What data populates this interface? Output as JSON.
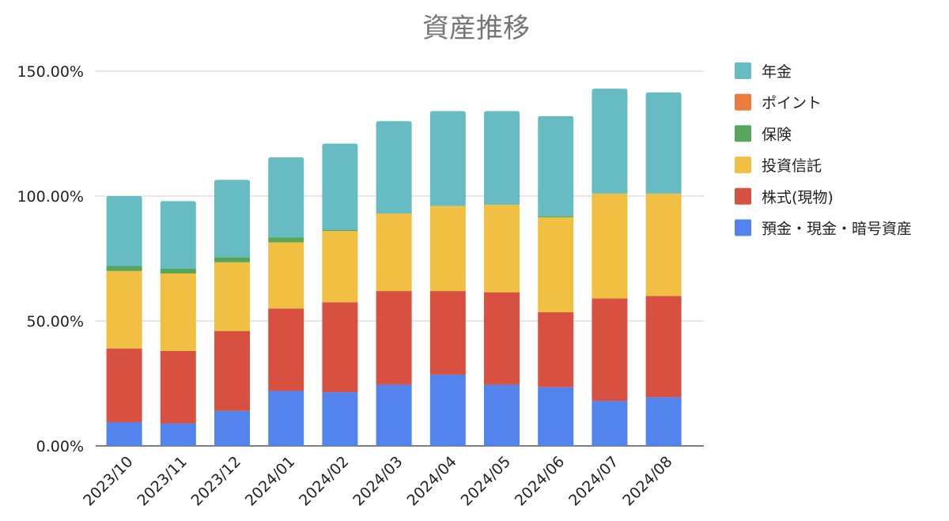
{
  "chart_data": {
    "type": "bar",
    "stacked": true,
    "title": "資産推移",
    "xlabel": "",
    "ylabel": "",
    "categories": [
      "2023/10",
      "2023/11",
      "2023/12",
      "2024/01",
      "2024/02",
      "2024/03",
      "2024/04",
      "2024/05",
      "2024/06",
      "2024/07",
      "2024/08"
    ],
    "ylim": [
      0,
      150
    ],
    "yticks": [
      0,
      50,
      100,
      150
    ],
    "ytick_labels": [
      "0.00%",
      "50.00%",
      "100.00%",
      "150.00%"
    ],
    "grid": true,
    "legend_position": "right",
    "series": [
      {
        "name": "預金・現金・暗号資産",
        "color": "#5383ec",
        "values": [
          9.5,
          9,
          14,
          22,
          21.5,
          24.5,
          28.5,
          24.5,
          23.5,
          18,
          19.5
        ]
      },
      {
        "name": "株式(現物)",
        "color": "#d85140",
        "values": [
          29.5,
          29,
          32,
          33,
          36,
          37.5,
          33.5,
          37,
          30,
          41,
          40.5
        ]
      },
      {
        "name": "投資信託",
        "color": "#f1bf42",
        "values": [
          31,
          31,
          27.5,
          26.5,
          28.5,
          31,
          34,
          35,
          38,
          42,
          41
        ]
      },
      {
        "name": "保険",
        "color": "#58a55c",
        "values": [
          2,
          2,
          2,
          2,
          0.5,
          0,
          0,
          0,
          0.5,
          0,
          0
        ]
      },
      {
        "name": "ポイント",
        "color": "#eb7d3c",
        "values": [
          0,
          0,
          0,
          0,
          0,
          0,
          0,
          0,
          0,
          0,
          0
        ]
      },
      {
        "name": "年金",
        "color": "#67bcc4",
        "values": [
          28,
          27,
          31,
          32,
          34.5,
          37,
          38,
          37.5,
          40,
          42,
          40.5
        ]
      }
    ],
    "legend_order": [
      "年金",
      "ポイント",
      "保険",
      "投資信託",
      "株式(現物)",
      "預金・現金・暗号資産"
    ]
  }
}
